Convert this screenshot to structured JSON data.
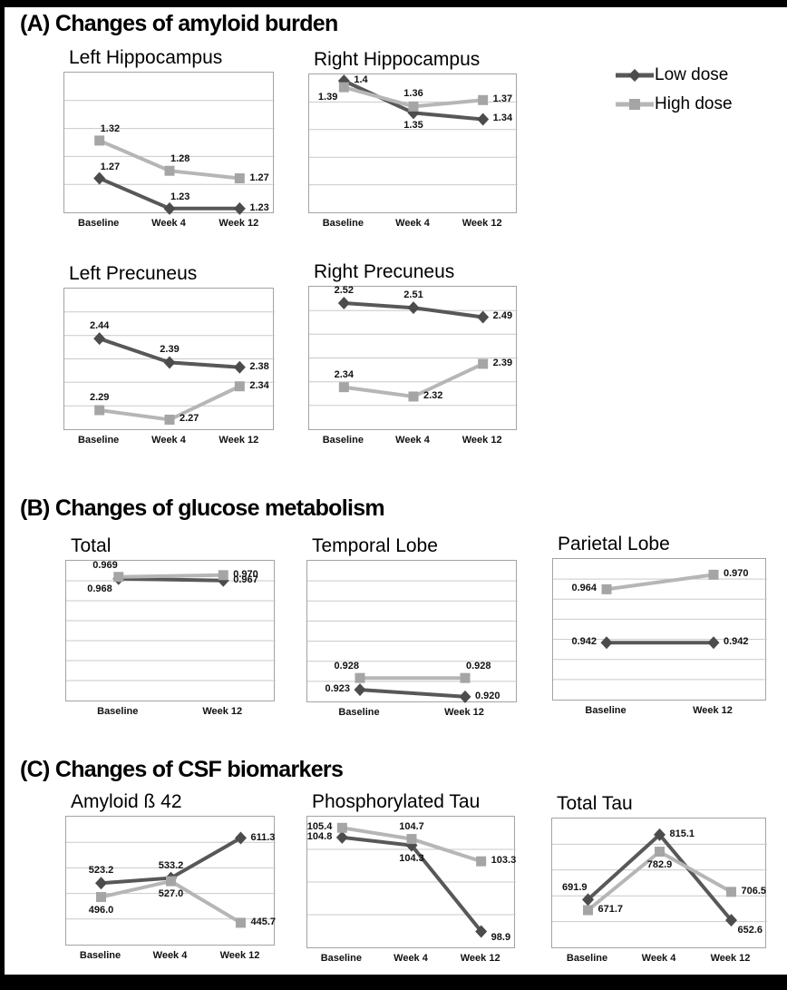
{
  "figure": {
    "kind": "scientific multi-panel line figure",
    "background": "#ffffff",
    "frame_color": "#000000"
  },
  "sections": [
    {
      "id": "A",
      "title": "(A) Changes of amyloid burden"
    },
    {
      "id": "B",
      "title": "(B) Changes of glucose metabolism"
    },
    {
      "id": "C",
      "title": "(C) Changes of CSF biomarkers"
    }
  ],
  "legend": {
    "position": "top-right",
    "items": [
      {
        "label": "Low dose",
        "marker": "diamond",
        "line_color": "#585858",
        "marker_color": "#4c4c4c"
      },
      {
        "label": "High dose",
        "marker": "square",
        "line_color": "#b6b6b6",
        "marker_color": "#a5a5a5"
      }
    ]
  },
  "colors": {
    "low_line": "#585858",
    "low_marker": "#4c4c4c",
    "high_line": "#b6b6b6",
    "high_marker": "#a5a5a5",
    "gridline": "#c9c9c9",
    "plot_border": "#a3a3a3",
    "label_text": "#111111"
  },
  "chart_data": [
    {
      "id": "left-hippocampus",
      "section": "A",
      "type": "line",
      "title": "Left Hippocampus",
      "categories": [
        "Baseline",
        "Week 4",
        "Week 12"
      ],
      "ylim": [
        1.225,
        1.41
      ],
      "grid_rows": 5,
      "grid": true,
      "series": [
        {
          "name": "Low dose",
          "marker": "diamond",
          "values": [
            1.27,
            1.23,
            1.23
          ],
          "labels": [
            "1.27",
            "1.23",
            "1.23"
          ],
          "label_pos": [
            "above-right",
            "above-right",
            "right"
          ]
        },
        {
          "name": "High dose",
          "marker": "square",
          "values": [
            1.32,
            1.28,
            1.27
          ],
          "labels": [
            "1.32",
            "1.28",
            "1.27"
          ],
          "label_pos": [
            "above-right",
            "above-right",
            "right"
          ]
        }
      ]
    },
    {
      "id": "right-hippocampus",
      "section": "A",
      "type": "line",
      "title": "Right Hippocampus",
      "categories": [
        "Baseline",
        "Week 4",
        "Week 12"
      ],
      "ylim": [
        1.195,
        1.41
      ],
      "grid_rows": 5,
      "grid": true,
      "series": [
        {
          "name": "Low dose",
          "marker": "diamond",
          "values": [
            1.4,
            1.35,
            1.34
          ],
          "labels": [
            "1.4",
            "1.35",
            "1.34"
          ],
          "label_pos": [
            "right",
            "below",
            "right"
          ]
        },
        {
          "name": "High dose",
          "marker": "square",
          "values": [
            1.39,
            1.36,
            1.37
          ],
          "labels": [
            "1.39",
            "1.36",
            "1.37"
          ],
          "label_pos": [
            "below-left",
            "above",
            "right"
          ]
        }
      ]
    },
    {
      "id": "left-precuneus",
      "section": "A",
      "type": "line",
      "title": "Left Precuneus",
      "categories": [
        "Baseline",
        "Week 4",
        "Week 12"
      ],
      "ylim": [
        2.25,
        2.545
      ],
      "grid_rows": 6,
      "grid": true,
      "series": [
        {
          "name": "Low dose",
          "marker": "diamond",
          "values": [
            2.44,
            2.39,
            2.38
          ],
          "labels": [
            "2.44",
            "2.39",
            "2.38"
          ],
          "label_pos": [
            "above",
            "above",
            "right"
          ]
        },
        {
          "name": "High dose",
          "marker": "square",
          "values": [
            2.29,
            2.27,
            2.34
          ],
          "labels": [
            "2.29",
            "2.27",
            "2.34"
          ],
          "label_pos": [
            "above",
            "right",
            "right"
          ]
        }
      ]
    },
    {
      "id": "right-precuneus",
      "section": "A",
      "type": "line",
      "title": "Right Precuneus",
      "categories": [
        "Baseline",
        "Week 4",
        "Week 12"
      ],
      "ylim": [
        2.25,
        2.555
      ],
      "grid_rows": 6,
      "grid": true,
      "series": [
        {
          "name": "Low dose",
          "marker": "diamond",
          "values": [
            2.52,
            2.51,
            2.49
          ],
          "labels": [
            "2.52",
            "2.51",
            "2.49"
          ],
          "label_pos": [
            "above",
            "above",
            "right"
          ]
        },
        {
          "name": "High dose",
          "marker": "square",
          "values": [
            2.34,
            2.32,
            2.39
          ],
          "labels": [
            "2.34",
            "2.32",
            "2.39"
          ],
          "label_pos": [
            "above",
            "right",
            "right"
          ]
        }
      ]
    },
    {
      "id": "total",
      "section": "B",
      "type": "line",
      "title": "Total",
      "categories": [
        "Baseline",
        "Week 12"
      ],
      "ylim": [
        0.9,
        0.978
      ],
      "grid_rows": 7,
      "grid": true,
      "series": [
        {
          "name": "Low dose",
          "marker": "diamond",
          "values": [
            0.968,
            0.967
          ],
          "labels": [
            "0.968",
            "0.967"
          ],
          "label_pos": [
            "below-left",
            "right"
          ]
        },
        {
          "name": "High dose",
          "marker": "square",
          "values": [
            0.969,
            0.97
          ],
          "labels": [
            "0.969",
            "0.970"
          ],
          "label_pos": [
            "above-left",
            "right"
          ]
        }
      ]
    },
    {
      "id": "temporal-lobe",
      "section": "B",
      "type": "line",
      "title": "Temporal Lobe",
      "categories": [
        "Baseline",
        "Week 12"
      ],
      "ylim": [
        0.918,
        0.978
      ],
      "grid_rows": 7,
      "grid": true,
      "series": [
        {
          "name": "Low dose",
          "marker": "diamond",
          "values": [
            0.923,
            0.92
          ],
          "labels": [
            "0.923",
            "0.920"
          ],
          "label_pos": [
            "left",
            "right"
          ]
        },
        {
          "name": "High dose",
          "marker": "square",
          "values": [
            0.928,
            0.928
          ],
          "labels": [
            "0.928",
            "0.928"
          ],
          "label_pos": [
            "above-left",
            "above-right"
          ]
        }
      ]
    },
    {
      "id": "parietal-lobe",
      "section": "B",
      "type": "line",
      "title": "Parietal Lobe",
      "categories": [
        "Baseline",
        "Week 12"
      ],
      "ylim": [
        0.9185,
        0.9765
      ],
      "grid_rows": 7,
      "grid": true,
      "series": [
        {
          "name": "Low dose",
          "marker": "diamond",
          "values": [
            0.942,
            0.942
          ],
          "labels": [
            "0.942",
            "0.942"
          ],
          "label_pos": [
            "left",
            "right"
          ]
        },
        {
          "name": "High dose",
          "marker": "square",
          "values": [
            0.964,
            0.97
          ],
          "labels": [
            "0.964",
            "0.970"
          ],
          "label_pos": [
            "left",
            "right"
          ]
        }
      ]
    },
    {
      "id": "amyloid-beta-42",
      "section": "C",
      "type": "line",
      "title": "Amyloid ß 42",
      "categories": [
        "Baseline",
        "Week 4",
        "Week 12"
      ],
      "ylim": [
        403,
        653
      ],
      "grid_rows": 5,
      "grid": true,
      "series": [
        {
          "name": "Low dose",
          "marker": "diamond",
          "values": [
            523.2,
            533.2,
            611.3
          ],
          "labels": [
            "523.2",
            "533.2",
            "611.3"
          ],
          "label_pos": [
            "above",
            "above",
            "right"
          ]
        },
        {
          "name": "High dose",
          "marker": "square",
          "values": [
            496.0,
            527.0,
            445.7
          ],
          "labels": [
            "496.0",
            "527.0",
            "445.7"
          ],
          "label_pos": [
            "below",
            "below",
            "right"
          ]
        }
      ]
    },
    {
      "id": "phosphorylated-tau",
      "section": "C",
      "type": "line",
      "title": "Phosphorylated Tau",
      "categories": [
        "Baseline",
        "Week 4",
        "Week 12"
      ],
      "ylim": [
        97.9,
        106.1
      ],
      "grid_rows": 4,
      "grid": true,
      "series": [
        {
          "name": "Low dose",
          "marker": "diamond",
          "values": [
            104.8,
            104.3,
            98.9
          ],
          "labels": [
            "104.8",
            "104.3",
            "98.9"
          ],
          "label_pos": [
            "left",
            "below",
            "right-below"
          ]
        },
        {
          "name": "High dose",
          "marker": "square",
          "values": [
            105.4,
            104.7,
            103.3
          ],
          "labels": [
            "105.4",
            "104.7",
            "103.3"
          ],
          "label_pos": [
            "left",
            "above",
            "right"
          ]
        }
      ]
    },
    {
      "id": "total-tau",
      "section": "C",
      "type": "line",
      "title": "Total Tau",
      "categories": [
        "Baseline",
        "Week 4",
        "Week 12"
      ],
      "ylim": [
        601,
        846
      ],
      "grid_rows": 5,
      "grid": true,
      "series": [
        {
          "name": "Low dose",
          "marker": "diamond",
          "values": [
            691.9,
            815.1,
            652.6
          ],
          "labels": [
            "691.9",
            "815.1",
            "652.6"
          ],
          "label_pos": [
            "above-left",
            "right",
            "below-right"
          ]
        },
        {
          "name": "High dose",
          "marker": "square",
          "values": [
            671.7,
            782.9,
            706.5
          ],
          "labels": [
            "671.7",
            "782.9",
            "706.5"
          ],
          "label_pos": [
            "right",
            "below",
            "right"
          ]
        }
      ]
    }
  ]
}
